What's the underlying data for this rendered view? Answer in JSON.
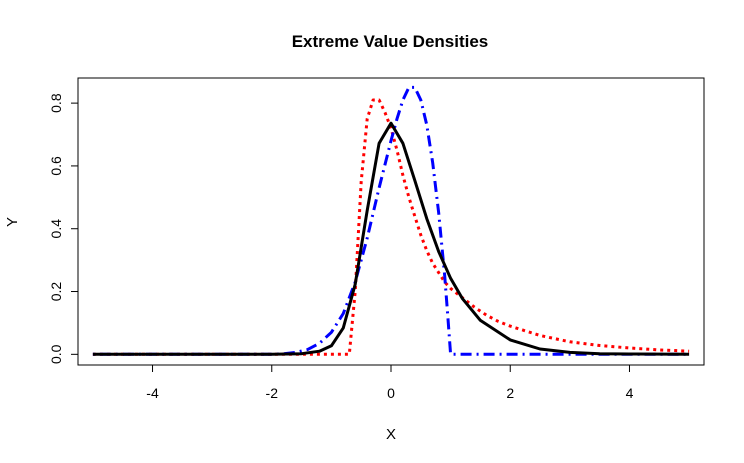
{
  "chart_data": {
    "type": "line",
    "title": "Extreme Value Densities",
    "xlabel": "X",
    "ylabel": "Y",
    "xlim": [
      -5.25,
      5.25
    ],
    "ylim": [
      -0.034,
      0.88
    ],
    "x_ticks": [
      -4,
      -2,
      0,
      2,
      4
    ],
    "x_tick_labels": [
      "-4",
      "-2",
      "0",
      "2",
      "4"
    ],
    "y_ticks": [
      0.0,
      0.2,
      0.4,
      0.6,
      0.8
    ],
    "y_tick_labels": [
      "0.0",
      "0.2",
      "0.4",
      "0.6",
      "0.8"
    ],
    "grid": false,
    "legend": "none",
    "series": [
      {
        "style": "dotted",
        "color": "#ff0000",
        "x": [
          -5,
          -1.0,
          -0.7,
          -0.6,
          -0.5,
          -0.4,
          -0.3,
          -0.2,
          -0.1,
          0.0,
          0.1,
          0.2,
          0.3,
          0.4,
          0.5,
          0.6,
          0.7,
          0.8,
          0.9,
          1.0,
          1.2,
          1.4,
          1.6,
          1.8,
          2.0,
          2.5,
          3.0,
          3.5,
          4.0,
          4.5,
          5.0
        ],
        "y": [
          0.0,
          0.0,
          0.0,
          0.2,
          0.55,
          0.75,
          0.81,
          0.81,
          0.77,
          0.72,
          0.65,
          0.57,
          0.5,
          0.44,
          0.38,
          0.33,
          0.29,
          0.26,
          0.23,
          0.21,
          0.18,
          0.15,
          0.125,
          0.105,
          0.09,
          0.06,
          0.04,
          0.028,
          0.02,
          0.014,
          0.01
        ]
      },
      {
        "style": "dotdash",
        "color": "#0000ff",
        "x": [
          -5,
          -2.0,
          -1.8,
          -1.6,
          -1.4,
          -1.2,
          -1.0,
          -0.8,
          -0.6,
          -0.4,
          -0.2,
          0.0,
          0.1,
          0.2,
          0.3,
          0.4,
          0.5,
          0.6,
          0.7,
          0.8,
          0.9,
          0.95,
          1.0,
          5.0
        ],
        "y": [
          0.0,
          0.0,
          0.002,
          0.006,
          0.015,
          0.035,
          0.07,
          0.13,
          0.23,
          0.37,
          0.53,
          0.68,
          0.75,
          0.81,
          0.85,
          0.85,
          0.81,
          0.73,
          0.61,
          0.45,
          0.25,
          0.13,
          0.0,
          0.0
        ]
      },
      {
        "style": "solid",
        "color": "#000000",
        "x": [
          -5,
          -2.0,
          -1.5,
          -1.2,
          -1.0,
          -0.8,
          -0.6,
          -0.4,
          -0.2,
          0.0,
          0.2,
          0.4,
          0.6,
          0.8,
          1.0,
          1.2,
          1.5,
          2.0,
          2.5,
          3.0,
          3.5,
          4.0,
          5.0
        ],
        "y": [
          0.0,
          0.0,
          0.002,
          0.01,
          0.027,
          0.084,
          0.223,
          0.458,
          0.672,
          0.736,
          0.672,
          0.554,
          0.432,
          0.327,
          0.242,
          0.177,
          0.108,
          0.046,
          0.017,
          0.006,
          0.002,
          0.001,
          0.0
        ]
      }
    ]
  }
}
